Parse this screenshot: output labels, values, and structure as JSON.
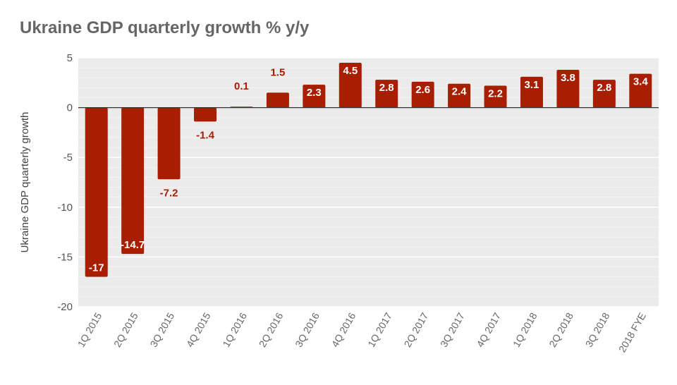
{
  "chart_data": {
    "type": "bar",
    "title": "Ukraine GDP quarterly growth % y/y",
    "xlabel": "",
    "ylabel": "Ukraine GDP quarterly growth",
    "categories": [
      "1Q 2015",
      "2Q 2015",
      "3Q 2015",
      "4Q 2015",
      "1Q 2016",
      "2Q 2016",
      "3Q 2016",
      "4Q 2016",
      "1Q 2017",
      "2Q 2017",
      "3Q 2017",
      "4Q 2017",
      "1Q 2018",
      "2Q 2018",
      "3Q 2018",
      "2018 FYE"
    ],
    "values": [
      -17,
      -14.7,
      -7.2,
      -1.4,
      0.1,
      1.5,
      2.3,
      4.5,
      2.8,
      2.6,
      2.4,
      2.2,
      3.1,
      3.8,
      2.8,
      3.4
    ],
    "value_labels": [
      "-17",
      "-14.7",
      "-7.2",
      "-1.4",
      "0.1",
      "1.5",
      "2.3",
      "4.5",
      "2.8",
      "2.6",
      "2.4",
      "2.2",
      "3.1",
      "3.8",
      "2.8",
      "3.4"
    ],
    "ylim": [
      -20,
      5
    ],
    "yticks": [
      5,
      0,
      -5,
      -10,
      -15,
      -20
    ],
    "ytick_labels": [
      "5",
      "0",
      "-5",
      "-10",
      "-15",
      "-20"
    ],
    "grid": true,
    "legend": "none",
    "colors": {
      "bar": "#a81e00",
      "plot_bg": "#ebebeb",
      "grid_major": "#ffffff",
      "grid_minor": "#f4f4f4",
      "zero_line": "#333333",
      "label_inside": "#ffffff",
      "label_outside": "#a81e00"
    }
  }
}
